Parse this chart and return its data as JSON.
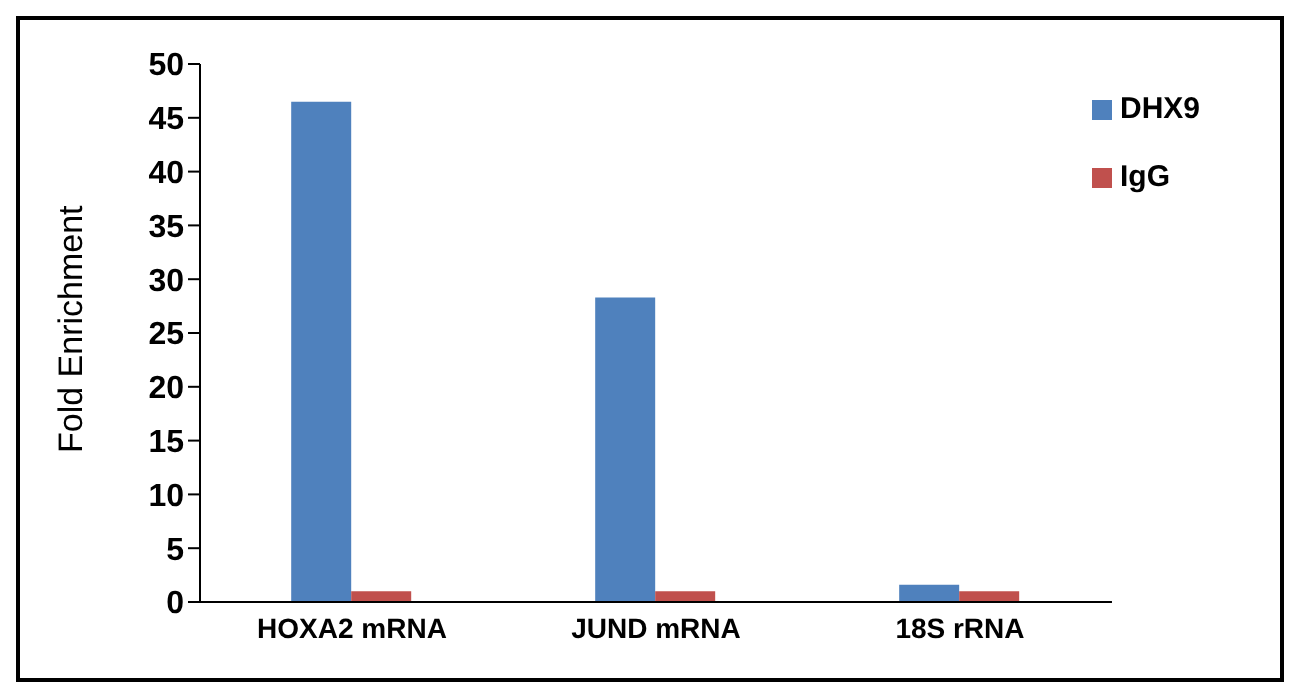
{
  "chart_data": {
    "type": "bar",
    "ylabel": "Fold Enrichment",
    "categories": [
      "HOXA2 mRNA",
      "JUND mRNA",
      "18S rRNA"
    ],
    "series": [
      {
        "name": "DHX9",
        "color": "#4f81bd",
        "values": [
          46.5,
          28.3,
          1.6
        ]
      },
      {
        "name": "IgG",
        "color": "#c0504d",
        "values": [
          1,
          1,
          1
        ]
      }
    ],
    "ylim": [
      0,
      50
    ],
    "yticks": [
      0,
      5,
      10,
      15,
      20,
      25,
      30,
      35,
      40,
      45,
      50
    ],
    "grid": false,
    "legend": "top right"
  }
}
